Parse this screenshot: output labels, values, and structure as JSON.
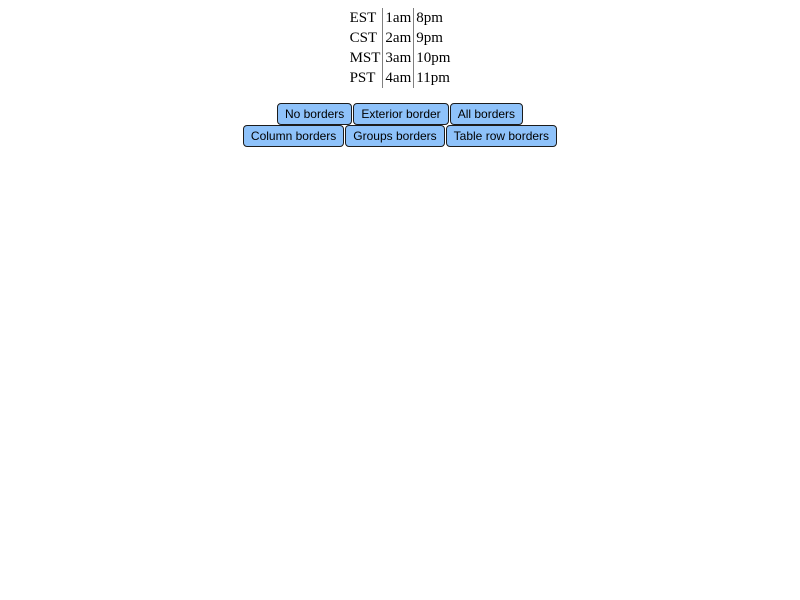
{
  "timezone_table": {
    "rows": [
      {
        "zone": "EST",
        "first": "1am",
        "second": "8pm"
      },
      {
        "zone": "CST",
        "first": "2am",
        "second": "9pm"
      },
      {
        "zone": "MST",
        "first": "3am",
        "second": "10pm"
      },
      {
        "zone": "PST",
        "first": "4am",
        "second": "11pm"
      }
    ]
  },
  "buttons": {
    "row1": [
      {
        "label": "No borders"
      },
      {
        "label": "Exterior border"
      },
      {
        "label": "All borders"
      }
    ],
    "row2": [
      {
        "label": "Column borders"
      },
      {
        "label": "Groups borders"
      },
      {
        "label": "Table row borders"
      }
    ]
  },
  "colors": {
    "button_background": "#8ec2fa",
    "button_border": "#1c1c1c",
    "column_rule": "#808080"
  }
}
